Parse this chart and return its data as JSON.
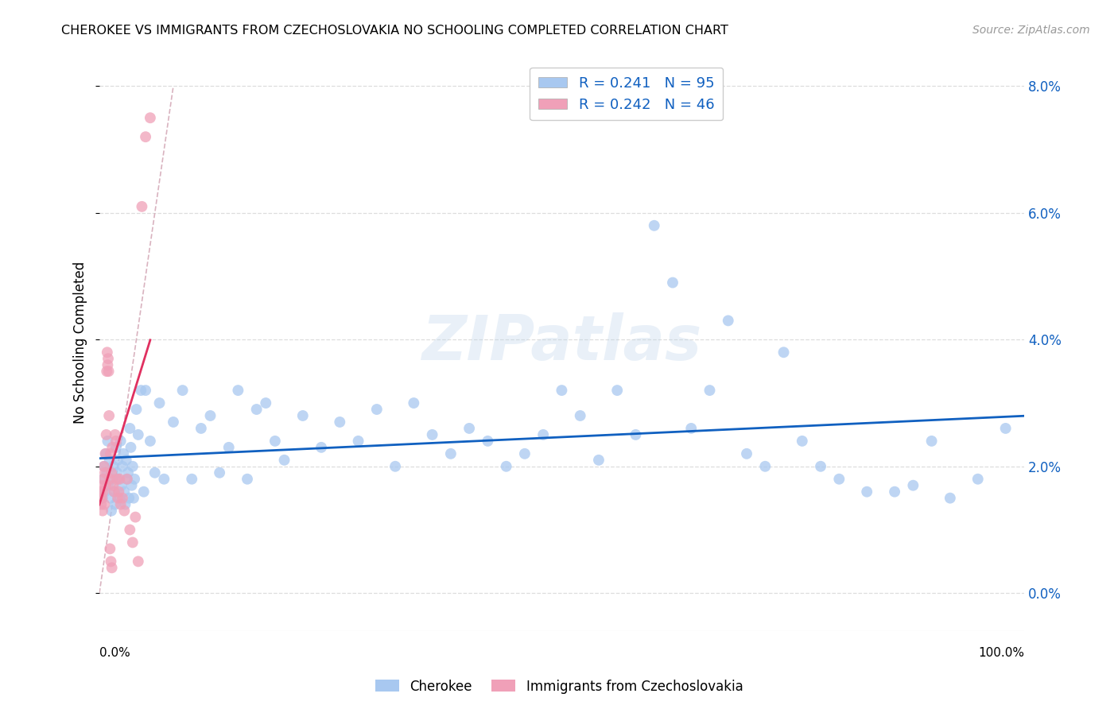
{
  "title": "CHEROKEE VS IMMIGRANTS FROM CZECHOSLOVAKIA NO SCHOOLING COMPLETED CORRELATION CHART",
  "source": "Source: ZipAtlas.com",
  "ylabel": "No Schooling Completed",
  "xlim": [
    0,
    100
  ],
  "ylim": [
    -0.6,
    8.5
  ],
  "yticks": [
    0,
    2,
    4,
    6,
    8
  ],
  "ytick_labels": [
    "0.0%",
    "2.0%",
    "4.0%",
    "6.0%",
    "8.0%"
  ],
  "legend_r1": "R = 0.241",
  "legend_n1": "N = 95",
  "legend_r2": "R = 0.242",
  "legend_n2": "N = 46",
  "color_blue": "#a8c8f0",
  "color_pink": "#f0a0b8",
  "color_line_blue": "#1060c0",
  "color_line_pink": "#e03060",
  "color_line_diag": "#d0a0b0",
  "watermark": "ZIPatlas",
  "cherokee_x": [
    0.3,
    0.4,
    0.5,
    0.6,
    0.7,
    0.8,
    0.9,
    1.0,
    1.1,
    1.2,
    1.3,
    1.4,
    1.5,
    1.6,
    1.7,
    1.8,
    1.9,
    2.0,
    2.1,
    2.2,
    2.3,
    2.4,
    2.5,
    2.6,
    2.7,
    2.8,
    2.9,
    3.0,
    3.1,
    3.2,
    3.3,
    3.4,
    3.5,
    3.6,
    3.7,
    3.8,
    4.0,
    4.2,
    4.5,
    4.8,
    5.0,
    5.5,
    6.0,
    6.5,
    7.0,
    8.0,
    9.0,
    10.0,
    11.0,
    12.0,
    13.0,
    14.0,
    15.0,
    16.0,
    17.0,
    18.0,
    19.0,
    20.0,
    22.0,
    24.0,
    26.0,
    28.0,
    30.0,
    32.0,
    34.0,
    36.0,
    38.0,
    40.0,
    42.0,
    44.0,
    46.0,
    48.0,
    50.0,
    52.0,
    54.0,
    56.0,
    58.0,
    60.0,
    62.0,
    64.0,
    66.0,
    68.0,
    70.0,
    72.0,
    74.0,
    76.0,
    78.0,
    80.0,
    83.0,
    86.0,
    88.0,
    90.0,
    92.0,
    95.0,
    98.0
  ],
  "cherokee_y": [
    1.5,
    1.8,
    2.0,
    1.6,
    2.2,
    1.9,
    2.4,
    1.7,
    2.1,
    1.5,
    1.3,
    1.8,
    2.0,
    1.6,
    1.4,
    2.3,
    1.9,
    2.1,
    1.8,
    1.5,
    2.4,
    1.7,
    2.0,
    2.2,
    1.6,
    1.4,
    2.1,
    1.8,
    1.9,
    1.5,
    2.6,
    2.3,
    1.7,
    2.0,
    1.5,
    1.8,
    2.9,
    2.5,
    3.2,
    1.6,
    3.2,
    2.4,
    1.9,
    3.0,
    1.8,
    2.7,
    3.2,
    1.8,
    2.6,
    2.8,
    1.9,
    2.3,
    3.2,
    1.8,
    2.9,
    3.0,
    2.4,
    2.1,
    2.8,
    2.3,
    2.7,
    2.4,
    2.9,
    2.0,
    3.0,
    2.5,
    2.2,
    2.6,
    2.4,
    2.0,
    2.2,
    2.5,
    3.2,
    2.8,
    2.1,
    3.2,
    2.5,
    5.8,
    4.9,
    2.6,
    3.2,
    4.3,
    2.2,
    2.0,
    3.8,
    2.4,
    2.0,
    1.8,
    1.6,
    1.6,
    1.7,
    2.4,
    1.5,
    1.8,
    2.6
  ],
  "czech_x": [
    0.1,
    0.15,
    0.2,
    0.25,
    0.3,
    0.35,
    0.4,
    0.45,
    0.5,
    0.55,
    0.6,
    0.65,
    0.7,
    0.75,
    0.8,
    0.85,
    0.9,
    0.95,
    1.0,
    1.05,
    1.1,
    1.15,
    1.2,
    1.25,
    1.3,
    1.35,
    1.4,
    1.5,
    1.6,
    1.7,
    1.8,
    1.9,
    2.0,
    2.1,
    2.2,
    2.3,
    2.5,
    2.7,
    3.0,
    3.3,
    3.6,
    3.9,
    4.2,
    4.6,
    5.0,
    5.5
  ],
  "czech_y": [
    1.5,
    1.6,
    1.4,
    1.7,
    1.5,
    1.3,
    1.6,
    1.8,
    2.0,
    1.4,
    1.9,
    2.2,
    1.7,
    2.5,
    3.5,
    3.8,
    3.6,
    3.7,
    3.5,
    2.8,
    1.8,
    0.7,
    2.2,
    0.5,
    1.9,
    0.4,
    2.3,
    1.7,
    1.6,
    2.5,
    2.4,
    1.8,
    1.5,
    1.6,
    1.8,
    1.4,
    1.5,
    1.3,
    1.8,
    1.0,
    0.8,
    1.2,
    0.5,
    6.1,
    7.2,
    7.5
  ],
  "blue_line_x": [
    0,
    100
  ],
  "blue_line_y": [
    1.5,
    2.8
  ],
  "pink_line_x": [
    0,
    5.5
  ],
  "pink_line_y": [
    1.3,
    3.5
  ],
  "diag_line_x": [
    0,
    8
  ],
  "diag_line_y": [
    0,
    8
  ]
}
